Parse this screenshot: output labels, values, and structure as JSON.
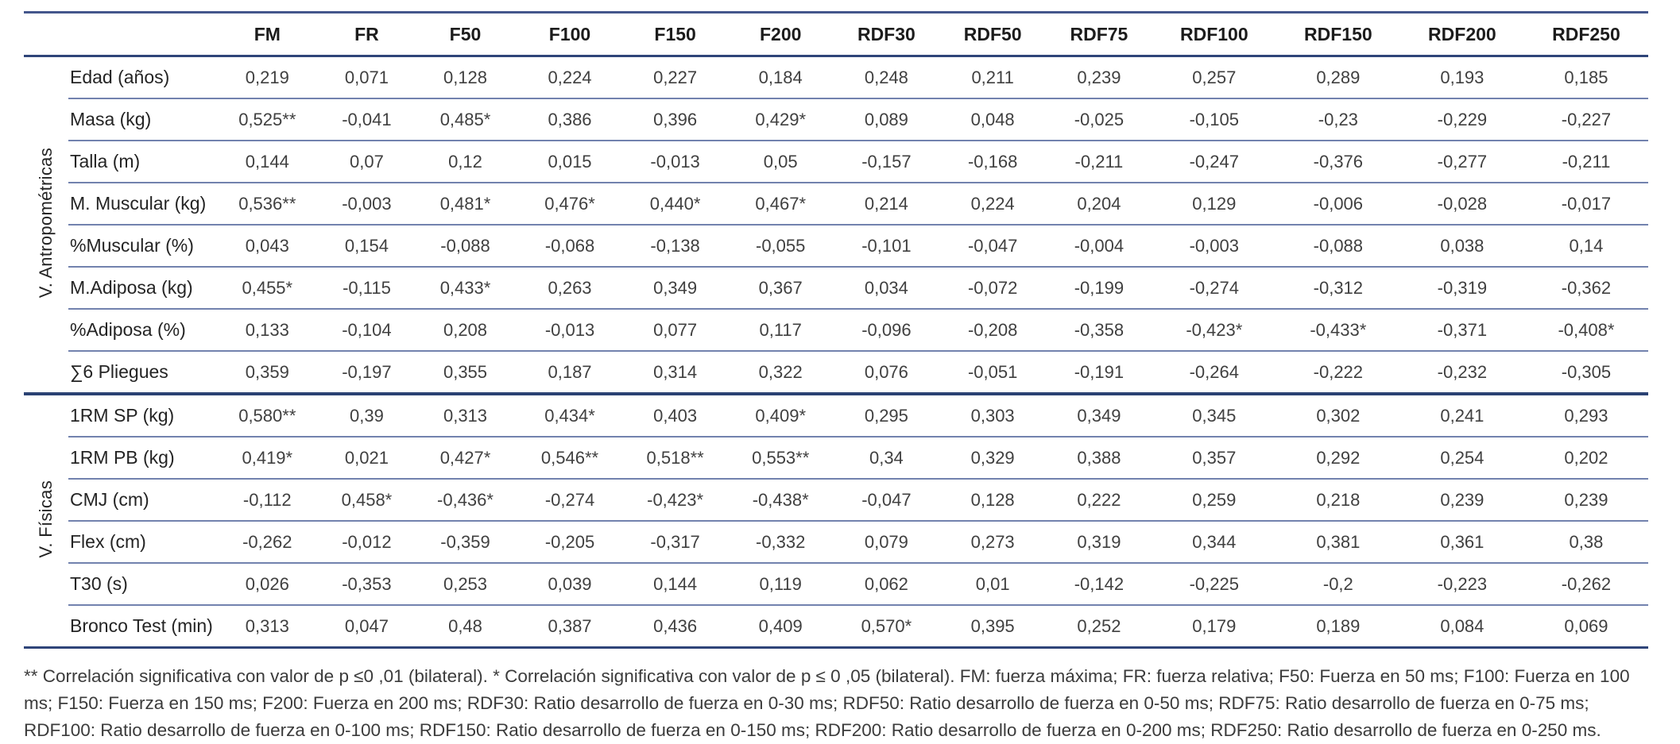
{
  "colors": {
    "rule_top": "#44568c",
    "rule_header": "#2f4579",
    "rule_thin": "#7282ae",
    "rule_group": "#2b4273",
    "rule_bottom": "#2f4579",
    "text": "#404040",
    "label_text": "#242424"
  },
  "table": {
    "columns": [
      "FM",
      "FR",
      "F50",
      "F100",
      "F150",
      "F200",
      "RDF30",
      "RDF50",
      "RDF75",
      "RDF100",
      "RDF150",
      "RDF200",
      "RDF250"
    ],
    "groups": [
      {
        "label": "V. Antropométricas",
        "rows": [
          {
            "label": "Edad (años)",
            "values": [
              "0,219",
              "0,071",
              "0,128",
              "0,224",
              "0,227",
              "0,184",
              "0,248",
              "0,211",
              "0,239",
              "0,257",
              "0,289",
              "0,193",
              "0,185"
            ]
          },
          {
            "label": "Masa (kg)",
            "values": [
              "0,525**",
              "-0,041",
              "0,485*",
              "0,386",
              "0,396",
              "0,429*",
              "0,089",
              "0,048",
              "-0,025",
              "-0,105",
              "-0,23",
              "-0,229",
              "-0,227"
            ]
          },
          {
            "label": "Talla (m)",
            "values": [
              "0,144",
              "0,07",
              "0,12",
              "0,015",
              "-0,013",
              "0,05",
              "-0,157",
              "-0,168",
              "-0,211",
              "-0,247",
              "-0,376",
              "-0,277",
              "-0,211"
            ]
          },
          {
            "label": "M. Muscular (kg)",
            "values": [
              "0,536**",
              "-0,003",
              "0,481*",
              "0,476*",
              "0,440*",
              "0,467*",
              "0,214",
              "0,224",
              "0,204",
              "0,129",
              "-0,006",
              "-0,028",
              "-0,017"
            ]
          },
          {
            "label": "%Muscular (%)",
            "values": [
              "0,043",
              "0,154",
              "-0,088",
              "-0,068",
              "-0,138",
              "-0,055",
              "-0,101",
              "-0,047",
              "-0,004",
              "-0,003",
              "-0,088",
              "0,038",
              "0,14"
            ]
          },
          {
            "label": "M.Adiposa (kg)",
            "values": [
              "0,455*",
              "-0,115",
              "0,433*",
              "0,263",
              "0,349",
              "0,367",
              "0,034",
              "-0,072",
              "-0,199",
              "-0,274",
              "-0,312",
              "-0,319",
              "-0,362"
            ]
          },
          {
            "label": "%Adiposa (%)",
            "values": [
              "0,133",
              "-0,104",
              "0,208",
              "-0,013",
              "0,077",
              "0,117",
              "-0,096",
              "-0,208",
              "-0,358",
              "-0,423*",
              "-0,433*",
              "-0,371",
              "-0,408*"
            ]
          },
          {
            "label": "∑6 Pliegues",
            "values": [
              "0,359",
              "-0,197",
              "0,355",
              "0,187",
              "0,314",
              "0,322",
              "0,076",
              "-0,051",
              "-0,191",
              "-0,264",
              "-0,222",
              "-0,232",
              "-0,305"
            ]
          }
        ]
      },
      {
        "label": "V. Físicas",
        "rows": [
          {
            "label": "1RM SP (kg)",
            "values": [
              "0,580**",
              "0,39",
              "0,313",
              "0,434*",
              "0,403",
              "0,409*",
              "0,295",
              "0,303",
              "0,349",
              "0,345",
              "0,302",
              "0,241",
              "0,293"
            ]
          },
          {
            "label": "1RM PB (kg)",
            "values": [
              "0,419*",
              "0,021",
              "0,427*",
              "0,546**",
              "0,518**",
              "0,553**",
              "0,34",
              "0,329",
              "0,388",
              "0,357",
              "0,292",
              "0,254",
              "0,202"
            ]
          },
          {
            "label": "CMJ (cm)",
            "values": [
              "-0,112",
              "0,458*",
              "-0,436*",
              "-0,274",
              "-0,423*",
              "-0,438*",
              "-0,047",
              "0,128",
              "0,222",
              "0,259",
              "0,218",
              "0,239",
              "0,239"
            ]
          },
          {
            "label": "Flex (cm)",
            "values": [
              "-0,262",
              "-0,012",
              "-0,359",
              "-0,205",
              "-0,317",
              "-0,332",
              "0,079",
              "0,273",
              "0,319",
              "0,344",
              "0,381",
              "0,361",
              "0,38"
            ]
          },
          {
            "label": "T30 (s)",
            "values": [
              "0,026",
              "-0,353",
              "0,253",
              "0,039",
              "0,144",
              "0,119",
              "0,062",
              "0,01",
              "-0,142",
              "-0,225",
              "-0,2",
              "-0,223",
              "-0,262"
            ]
          },
          {
            "label": "Bronco Test (min)",
            "values": [
              "0,313",
              "0,047",
              "0,48",
              "0,387",
              "0,436",
              "0,409",
              "0,570*",
              "0,395",
              "0,252",
              "0,179",
              "0,189",
              "0,084",
              "0,069"
            ]
          }
        ]
      }
    ]
  },
  "footnote": "** Correlación significativa con valor de p ≤0 ,01 (bilateral). * Correlación significativa con valor de p ≤ 0 ,05 (bilateral). FM: fuerza máxima; FR: fuerza relativa; F50: Fuerza en 50 ms; F100: Fuerza en 100 ms; F150: Fuerza en 150 ms; F200: Fuerza en 200 ms; RDF30: Ratio desarrollo de fuerza en 0-30 ms;  RDF50: Ratio desarrollo de fuerza en 0-50 ms;  RDF75: Ratio desarrollo de fuerza en 0-75 ms;  RDF100: Ratio desarrollo de fuerza en 0-100 ms;  RDF150: Ratio desarrollo de fuerza en 0-150 ms;  RDF200: Ratio desarrollo de fuerza en 0-200 ms;  RDF250: Ratio desarrollo de fuerza en 0-250 ms."
}
